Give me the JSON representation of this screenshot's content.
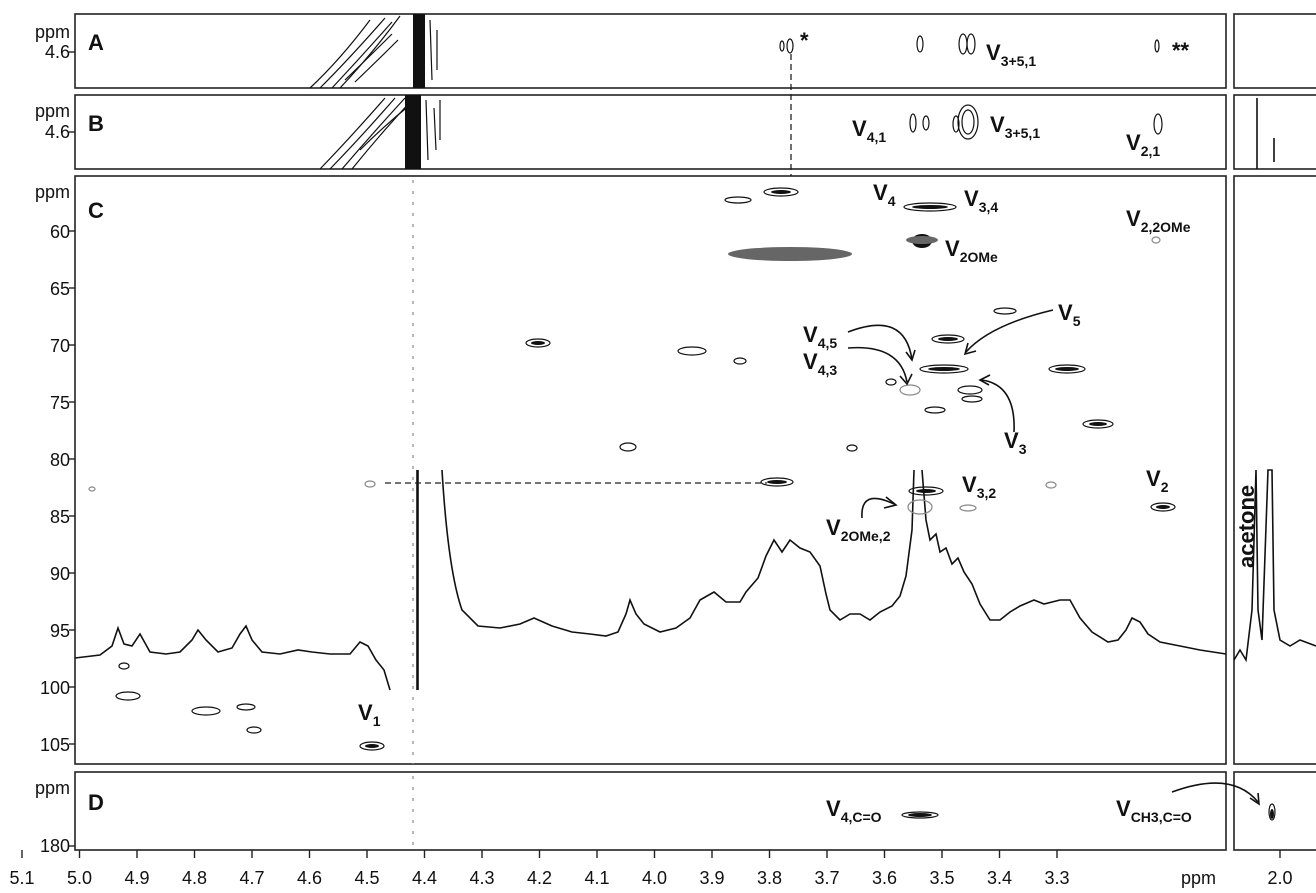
{
  "chart_data": {
    "type": "scatter",
    "description_axis": "2D NMR spectra, 1H (horizontal) vs 13C/1H (vertical)",
    "x_unit": "ppm",
    "x_axis": {
      "range": [
        5.1,
        3.2
      ],
      "reversed": true,
      "ticks": [
        "5.1",
        "5.0",
        "4.9",
        "4.8",
        "4.7",
        "4.6",
        "4.5",
        "4.4",
        "4.3",
        "4.2",
        "4.1",
        "4.0",
        "3.9",
        "3.8",
        "3.7",
        "3.6",
        "3.5",
        "3.4",
        "3.3"
      ],
      "extra_tick": "2.0"
    },
    "panels": [
      {
        "id": "A",
        "y_unit": "ppm",
        "y_ticks": [
          "4.6"
        ],
        "labels": [
          {
            "main": "V",
            "sub": "3+5,1"
          },
          {
            "main": "*",
            "sub": ""
          },
          {
            "main": "**",
            "sub": ""
          }
        ]
      },
      {
        "id": "B",
        "y_unit": "ppm",
        "y_ticks": [
          "4.6"
        ],
        "labels": [
          {
            "main": "V",
            "sub": "4,1"
          },
          {
            "main": "V",
            "sub": "3+5,1"
          },
          {
            "main": "V",
            "sub": "2,1"
          }
        ]
      },
      {
        "id": "C",
        "y_unit": "ppm",
        "y_ticks": [
          "60",
          "65",
          "70",
          "75",
          "80",
          "85",
          "90",
          "95",
          "100",
          "105"
        ],
        "labels": [
          {
            "main": "V",
            "sub": "4"
          },
          {
            "main": "V",
            "sub": "3,4"
          },
          {
            "main": "V",
            "sub": "2,2OMe"
          },
          {
            "main": "V",
            "sub": "2OMe"
          },
          {
            "main": "V",
            "sub": "5"
          },
          {
            "main": "V",
            "sub": "4,5"
          },
          {
            "main": "V",
            "sub": "4,3"
          },
          {
            "main": "V",
            "sub": "3"
          },
          {
            "main": "V",
            "sub": "2"
          },
          {
            "main": "V",
            "sub": "3,2"
          },
          {
            "main": "V",
            "sub": "2OMe,2"
          },
          {
            "main": "V",
            "sub": "1"
          },
          {
            "main": "acetone",
            "sub": ""
          }
        ],
        "cross_peaks": [
          {
            "x": 3.86,
            "y": 82.2
          },
          {
            "x": 3.64,
            "y": 82.7
          },
          {
            "x": 3.23,
            "y": 84.3
          },
          {
            "x": 4.58,
            "y": 105.5
          },
          {
            "x": 3.88,
            "y": 57.0
          },
          {
            "x": 3.64,
            "y": 57.8
          },
          {
            "x": 3.64,
            "y": 61.0
          },
          {
            "x": 4.3,
            "y": 70.0
          },
          {
            "x": 3.61,
            "y": 69.6
          },
          {
            "x": 3.57,
            "y": 71.9
          },
          {
            "x": 3.39,
            "y": 72.1
          },
          {
            "x": 3.37,
            "y": 77.0
          }
        ]
      },
      {
        "id": "D",
        "y_unit": "ppm",
        "y_ticks": [
          "180"
        ],
        "labels": [
          {
            "main": "V",
            "sub": "4,C=O"
          },
          {
            "main": "V",
            "sub": "CH3,C=O"
          }
        ]
      }
    ]
  }
}
